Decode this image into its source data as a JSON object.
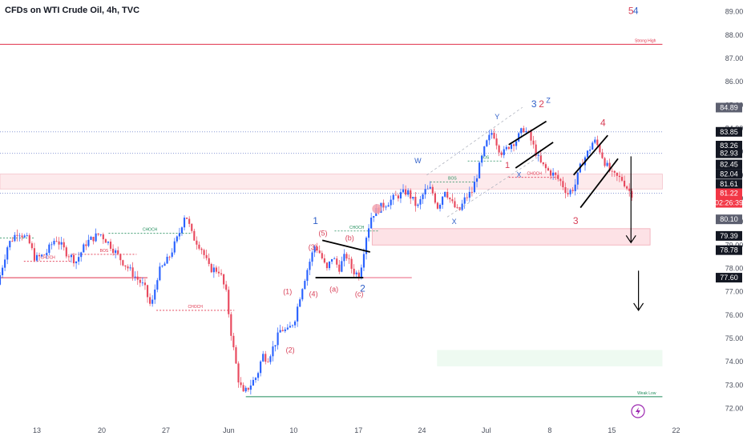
{
  "title": "CFDs on WTI Crude Oil, 4h, TVC",
  "colors": {
    "up": "#2962ff",
    "down": "#e8495e",
    "wave_red": "#d83f57",
    "wave_blue": "#2f5fc8",
    "bos": "#1e8c5a",
    "axis_text": "#4a4f5c"
  },
  "chart_data": {
    "type": "candlestick",
    "title": "CFDs on WTI Crude Oil, 4h, TVC",
    "ylim": [
      71.5,
      89.5
    ],
    "xlim": [
      0,
      100
    ],
    "y_ticks": [
      89,
      88,
      87,
      86,
      85,
      84,
      83,
      82,
      81,
      80,
      79,
      78,
      77,
      76,
      75,
      74,
      73,
      72
    ],
    "y_tick_labels": [
      "89.00",
      "88.00",
      "87.00",
      "86.00",
      "85.00",
      "84.00",
      "83.00",
      "82.00",
      "81.00",
      "80.00",
      "79.00",
      "78.00",
      "77.00",
      "76.00",
      "75.00",
      "74.00",
      "73.00",
      "72.00"
    ],
    "x_ticks": [
      {
        "label": "13",
        "x": 5.4
      },
      {
        "label": "20",
        "x": 14.9
      },
      {
        "label": "27",
        "x": 24.3
      },
      {
        "label": "Jun",
        "x": 33.5
      },
      {
        "label": "10",
        "x": 43.0
      },
      {
        "label": "17",
        "x": 52.5
      },
      {
        "label": "24",
        "x": 61.8
      },
      {
        "label": "Jul",
        "x": 71.2
      },
      {
        "label": "8",
        "x": 80.5
      },
      {
        "label": "15",
        "x": 89.6
      },
      {
        "label": "22",
        "x": 99.0
      }
    ],
    "price_path": [
      [
        0.0,
        77.3
      ],
      [
        1.5,
        79.0
      ],
      [
        3.0,
        79.6
      ],
      [
        4.5,
        79.2
      ],
      [
        5.5,
        78.4
      ],
      [
        7.0,
        78.6
      ],
      [
        8.5,
        79.3
      ],
      [
        10.0,
        78.7
      ],
      [
        11.5,
        78.3
      ],
      [
        13.0,
        79.1
      ],
      [
        15.0,
        79.5
      ],
      [
        16.5,
        79.0
      ],
      [
        18.0,
        78.4
      ],
      [
        20.0,
        77.7
      ],
      [
        21.5,
        77.2
      ],
      [
        22.5,
        76.3
      ],
      [
        23.5,
        77.8
      ],
      [
        25.0,
        78.4
      ],
      [
        26.5,
        79.4
      ],
      [
        27.5,
        80.4
      ],
      [
        28.5,
        79.4
      ],
      [
        29.8,
        78.9
      ],
      [
        31.0,
        78.0
      ],
      [
        32.5,
        77.9
      ],
      [
        33.5,
        76.9
      ],
      [
        34.3,
        75.0
      ],
      [
        35.3,
        73.2
      ],
      [
        36.0,
        72.6
      ],
      [
        37.0,
        73.0
      ],
      [
        38.0,
        73.4
      ],
      [
        38.8,
        74.3
      ],
      [
        39.5,
        74.1
      ],
      [
        40.5,
        74.7
      ],
      [
        41.5,
        75.4
      ],
      [
        42.5,
        75.3
      ],
      [
        43.5,
        75.8
      ],
      [
        44.5,
        77.1
      ],
      [
        45.5,
        78.1
      ],
      [
        46.5,
        79.0
      ],
      [
        47.3,
        78.6
      ],
      [
        48.2,
        77.9
      ],
      [
        49.0,
        78.5
      ],
      [
        50.0,
        78.0
      ],
      [
        51.0,
        78.6
      ],
      [
        52.0,
        77.9
      ],
      [
        53.0,
        77.7
      ],
      [
        54.0,
        79.4
      ],
      [
        54.8,
        80.3
      ],
      [
        56.0,
        80.6
      ],
      [
        57.5,
        80.9
      ],
      [
        58.5,
        81.1
      ],
      [
        60.0,
        81.3
      ],
      [
        61.5,
        80.6
      ],
      [
        62.5,
        81.3
      ],
      [
        63.5,
        81.4
      ],
      [
        64.5,
        80.6
      ],
      [
        65.5,
        81.4
      ],
      [
        66.5,
        80.8
      ],
      [
        67.5,
        80.4
      ],
      [
        68.5,
        81.0
      ],
      [
        69.5,
        81.3
      ],
      [
        70.5,
        82.3
      ],
      [
        71.5,
        83.3
      ],
      [
        72.5,
        83.9
      ],
      [
        73.3,
        83.2
      ],
      [
        74.0,
        82.9
      ],
      [
        75.0,
        83.3
      ],
      [
        76.0,
        83.5
      ],
      [
        77.0,
        84.0
      ],
      [
        77.8,
        83.7
      ],
      [
        78.5,
        83.2
      ],
      [
        79.5,
        82.5
      ],
      [
        80.5,
        82.2
      ],
      [
        81.5,
        82.0
      ],
      [
        82.5,
        81.7
      ],
      [
        83.5,
        81.2
      ],
      [
        84.5,
        81.5
      ],
      [
        85.5,
        82.5
      ],
      [
        86.5,
        83.0
      ],
      [
        87.3,
        83.5
      ],
      [
        88.0,
        83.2
      ],
      [
        89.0,
        82.5
      ],
      [
        90.0,
        82.0
      ],
      [
        91.5,
        81.8
      ],
      [
        92.3,
        81.4
      ],
      [
        92.8,
        81.2
      ]
    ],
    "horizontal_levels": [
      {
        "price": 87.6,
        "x_start": 0,
        "x_end": 97,
        "color": "#e0304a",
        "width": 1,
        "dash": "",
        "label": "Strong High"
      },
      {
        "price": 72.5,
        "x_start": 36.0,
        "x_end": 97,
        "color": "#1e8c5a",
        "width": 1,
        "dash": "",
        "label": "Weak Low"
      },
      {
        "price": 83.85,
        "x_start": 0,
        "x_end": 97,
        "color": "#8c9bd6",
        "width": 1,
        "dash": "1,2",
        "label": ""
      },
      {
        "price": 82.93,
        "x_start": 0,
        "x_end": 97,
        "color": "#8c9bd6",
        "width": 1,
        "dash": "1,2",
        "label": ""
      },
      {
        "price": 81.22,
        "x_start": 0,
        "x_end": 97,
        "color": "#8c9bd6",
        "width": 1,
        "dash": "1,2",
        "label": ""
      },
      {
        "price": 77.6,
        "x_start": 0,
        "x_end": 21.6,
        "color": "#e0304a",
        "width": 1,
        "dash": "",
        "label": ""
      },
      {
        "price": 77.6,
        "x_start": 52.3,
        "x_end": 60.3,
        "color": "#f08ca0",
        "width": 1.3,
        "dash": "",
        "label": ""
      },
      {
        "price": 79.5,
        "x_start": 15.9,
        "x_end": 28.0,
        "color": "#1e8c5a",
        "width": 0.8,
        "dash": "2,2",
        "label": "CHOCH"
      },
      {
        "price": 79.3,
        "x_start": 0,
        "x_end": 5.0,
        "color": "#1e8c5a",
        "width": 0.8,
        "dash": "2,2",
        "label": ""
      },
      {
        "price": 76.2,
        "x_start": 22.9,
        "x_end": 34.3,
        "color": "#e0304a",
        "width": 0.8,
        "dash": "2,2",
        "label": "CHOCH"
      },
      {
        "price": 78.3,
        "x_start": 3.5,
        "x_end": 10.5,
        "color": "#e0304a",
        "width": 0.8,
        "dash": "2,2",
        "label": "CHOCH"
      },
      {
        "price": 78.6,
        "x_start": 10.5,
        "x_end": 20.0,
        "color": "#e0304a",
        "width": 0.8,
        "dash": "2,2",
        "label": "BOS"
      },
      {
        "price": 79.6,
        "x_start": 49.0,
        "x_end": 55.5,
        "color": "#1e8c5a",
        "width": 0.8,
        "dash": "2,2",
        "label": "CHOCH"
      },
      {
        "price": 81.7,
        "x_start": 63.0,
        "x_end": 69.5,
        "color": "#1e8c5a",
        "width": 0.8,
        "dash": "2,2",
        "label": "BOS"
      },
      {
        "price": 82.6,
        "x_start": 68.5,
        "x_end": 73.5,
        "color": "#1e8c5a",
        "width": 0.8,
        "dash": "2,2",
        "label": "BOS"
      },
      {
        "price": 81.9,
        "x_start": 74.5,
        "x_end": 82.0,
        "color": "#e0304a",
        "width": 0.8,
        "dash": "2,2",
        "label": "CHOCH"
      }
    ],
    "zones": [
      {
        "x0": 0,
        "x1": 97,
        "y_top": 82.04,
        "y_bottom": 81.4,
        "fill": "#fdeaec",
        "stroke": "#f5c2ca"
      },
      {
        "x0": 54.5,
        "x1": 95.2,
        "y_top": 79.7,
        "y_bottom": 79.0,
        "fill": "#fde2e6",
        "stroke": "#f2a9b4"
      },
      {
        "x0": 64.0,
        "x1": 97,
        "y_top": 74.5,
        "y_bottom": 73.8,
        "fill": "#eefaf1",
        "stroke": ""
      }
    ],
    "trend_lines": [
      {
        "points": [
          [
            47.2,
            79.2
          ],
          [
            54.2,
            78.7
          ]
        ],
        "color": "#000000",
        "width": 1.8,
        "dash": ""
      },
      {
        "points": [
          [
            46.2,
            77.6
          ],
          [
            53.2,
            77.6
          ]
        ],
        "color": "#000000",
        "width": 1.8,
        "dash": ""
      },
      {
        "points": [
          [
            74.5,
            83.3
          ],
          [
            80.0,
            84.3
          ]
        ],
        "color": "#000000",
        "width": 1.8,
        "dash": ""
      },
      {
        "points": [
          [
            75.5,
            82.3
          ],
          [
            81.0,
            83.4
          ]
        ],
        "color": "#000000",
        "width": 1.8,
        "dash": ""
      },
      {
        "points": [
          [
            84.0,
            82.0
          ],
          [
            89.0,
            83.7
          ]
        ],
        "color": "#000000",
        "width": 1.8,
        "dash": ""
      },
      {
        "points": [
          [
            85.0,
            80.6
          ],
          [
            90.5,
            82.7
          ]
        ],
        "color": "#000000",
        "width": 1.8,
        "dash": ""
      },
      {
        "points": [
          [
            62.5,
            82.0
          ],
          [
            76.5,
            84.9
          ]
        ],
        "color": "#b0b4bf",
        "width": 0.8,
        "dash": "3,3"
      },
      {
        "points": [
          [
            65.5,
            80.2
          ],
          [
            80.0,
            83.0
          ]
        ],
        "color": "#b0b4bf",
        "width": 0.8,
        "dash": "3,3"
      }
    ],
    "arrows": [
      {
        "x": 92.4,
        "y_from": 82.8,
        "y_to": 79.1,
        "color": "#000000"
      },
      {
        "x": 93.5,
        "y_from": 77.9,
        "y_to": 76.2,
        "color": "#000000"
      }
    ],
    "wave_labels": [
      {
        "text": "5",
        "x": 92.4,
        "y": 88.9,
        "color": "#d83f57",
        "size": 12
      },
      {
        "text": "4",
        "x": 93.1,
        "y": 88.9,
        "color": "#2f5fc8",
        "size": 12
      },
      {
        "text": "1",
        "x": 46.2,
        "y": 79.9,
        "color": "#2f5fc8",
        "size": 12
      },
      {
        "text": "2",
        "x": 53.1,
        "y": 77.0,
        "color": "#2f5fc8",
        "size": 12
      },
      {
        "text": "3",
        "x": 78.2,
        "y": 84.9,
        "color": "#2f5fc8",
        "size": 12
      },
      {
        "text": "2",
        "x": 79.3,
        "y": 84.9,
        "color": "#d83f57",
        "size": 12
      },
      {
        "text": "Z",
        "x": 80.3,
        "y": 85.1,
        "color": "#2f5fc8",
        "size": 9
      },
      {
        "text": "4",
        "x": 88.3,
        "y": 84.1,
        "color": "#d83f57",
        "size": 12
      },
      {
        "text": "3",
        "x": 84.3,
        "y": 79.9,
        "color": "#d83f57",
        "size": 12
      },
      {
        "text": "1",
        "x": 74.3,
        "y": 82.3,
        "color": "#d83f57",
        "size": 11
      },
      {
        "text": "Y",
        "x": 72.8,
        "y": 84.4,
        "color": "#2f5fc8",
        "size": 9
      },
      {
        "text": "W",
        "x": 61.2,
        "y": 82.5,
        "color": "#2f5fc8",
        "size": 9
      },
      {
        "text": "X",
        "x": 66.5,
        "y": 79.9,
        "color": "#2f5fc8",
        "size": 9
      },
      {
        "text": "X",
        "x": 76.0,
        "y": 81.9,
        "color": "#2f5fc8",
        "size": 9
      },
      {
        "text": "(5)",
        "x": 47.3,
        "y": 79.4,
        "color": "#d83f57",
        "size": 9
      },
      {
        "text": "(3)",
        "x": 45.8,
        "y": 78.8,
        "color": "#d83f57",
        "size": 9
      },
      {
        "text": "(b)",
        "x": 51.2,
        "y": 79.2,
        "color": "#d83f57",
        "size": 9
      },
      {
        "text": "(a)",
        "x": 48.9,
        "y": 77.0,
        "color": "#d83f57",
        "size": 9
      },
      {
        "text": "(c)",
        "x": 52.6,
        "y": 76.8,
        "color": "#d83f57",
        "size": 9
      },
      {
        "text": "(4)",
        "x": 45.9,
        "y": 76.8,
        "color": "#d83f57",
        "size": 9
      },
      {
        "text": "(1)",
        "x": 42.1,
        "y": 76.9,
        "color": "#d83f57",
        "size": 9
      },
      {
        "text": "(2)",
        "x": 42.5,
        "y": 74.4,
        "color": "#d83f57",
        "size": 9
      }
    ],
    "price_badges": [
      {
        "price": 84.89,
        "label": "84.89",
        "bg": "#5d6070",
        "fg": "#ffffff"
      },
      {
        "price": 83.85,
        "label": "83.85",
        "bg": "#131722",
        "fg": "#ffffff"
      },
      {
        "price": 83.26,
        "label": "83.26",
        "bg": "#131722",
        "fg": "#ffffff"
      },
      {
        "price": 82.93,
        "label": "82.93",
        "bg": "#131722",
        "fg": "#ffffff"
      },
      {
        "price": 82.45,
        "label": "82.45",
        "bg": "#131722",
        "fg": "#ffffff"
      },
      {
        "price": 82.04,
        "label": "82.04",
        "bg": "#131722",
        "fg": "#ffffff"
      },
      {
        "price": 81.61,
        "label": "81.61",
        "bg": "#131722",
        "fg": "#ffffff"
      },
      {
        "price": 81.22,
        "label": "81.22",
        "bg": "#f23645",
        "fg": "#ffffff"
      },
      {
        "price": 80.1,
        "label": "80.10",
        "bg": "#5d6070",
        "fg": "#ffffff"
      },
      {
        "price": 79.39,
        "label": "79.39",
        "bg": "#131722",
        "fg": "#ffffff"
      },
      {
        "price": 78.78,
        "label": "78.78",
        "bg": "#131722",
        "fg": "#ffffff"
      },
      {
        "price": 77.6,
        "label": "77.60",
        "bg": "#131722",
        "fg": "#ffffff"
      }
    ],
    "countdown": "02:26:39",
    "marker_circle": {
      "x": 55.2,
      "y": 80.55,
      "color": "#f4a3ae"
    },
    "extra_icon": "lightning-icon"
  }
}
